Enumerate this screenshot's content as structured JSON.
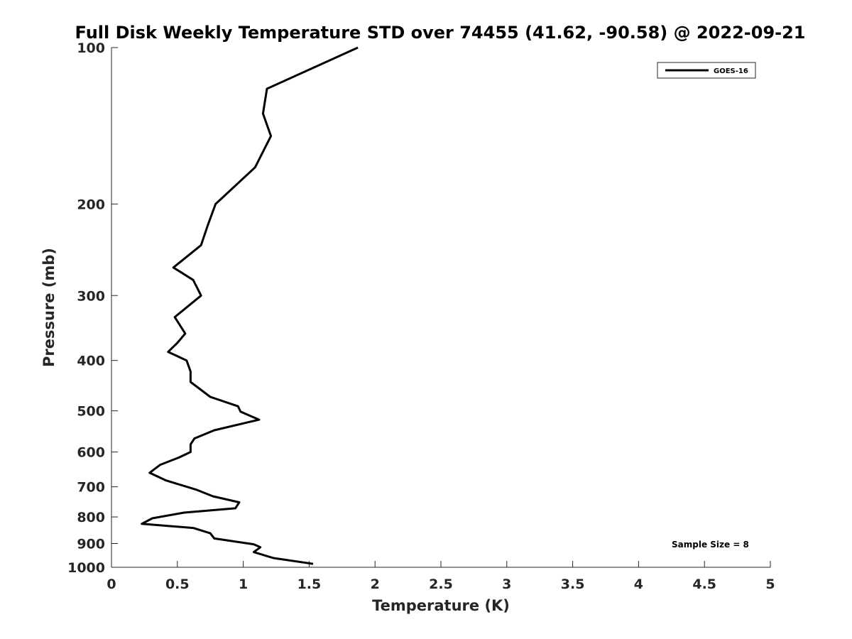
{
  "chart_data": {
    "type": "line",
    "title": "Full Disk Weekly Temperature STD over 74455 (41.62, -90.58) @ 2022-09-21",
    "xlabel": "Temperature (K)",
    "ylabel": "Pressure (mb)",
    "xlim": [
      0,
      5
    ],
    "ylim": [
      100,
      1000
    ],
    "yscale": "log",
    "y_reversed": true,
    "x_ticks": [
      0,
      0.5,
      1,
      1.5,
      2,
      2.5,
      3,
      3.5,
      4,
      4.5,
      5
    ],
    "x_tick_labels": [
      "0",
      "0.5",
      "1",
      "1.5",
      "2",
      "2.5",
      "3",
      "3.5",
      "4",
      "4.5",
      "5"
    ],
    "y_ticks": [
      100,
      200,
      300,
      400,
      500,
      600,
      700,
      800,
      900,
      1000
    ],
    "y_tick_labels": [
      "100",
      "200",
      "300",
      "400",
      "500",
      "600",
      "700",
      "800",
      "900",
      "1000"
    ],
    "grid": false,
    "legend_position": "top-right",
    "annotation": "Sample Size = 8",
    "series": [
      {
        "name": "GOES-16",
        "color": "#000000",
        "x": [
          1.87,
          1.18,
          1.15,
          1.21,
          1.09,
          0.79,
          0.73,
          0.68,
          0.47,
          0.62,
          0.68,
          0.48,
          0.56,
          0.5,
          0.43,
          0.57,
          0.6,
          0.6,
          0.75,
          0.96,
          0.98,
          1.12,
          0.78,
          0.63,
          0.6,
          0.6,
          0.51,
          0.37,
          0.29,
          0.41,
          0.65,
          0.77,
          0.97,
          0.94,
          0.55,
          0.31,
          0.23,
          0.62,
          0.75,
          0.78,
          1.08,
          1.13,
          1.08,
          1.23,
          1.53
        ],
        "y": [
          100,
          120,
          134,
          148,
          170,
          200,
          220,
          240,
          265,
          280,
          300,
          330,
          355,
          370,
          385,
          400,
          420,
          440,
          470,
          490,
          502,
          520,
          545,
          565,
          580,
          600,
          615,
          635,
          658,
          680,
          710,
          730,
          750,
          770,
          785,
          805,
          825,
          840,
          860,
          880,
          903,
          915,
          935,
          960,
          985
        ]
      }
    ]
  }
}
